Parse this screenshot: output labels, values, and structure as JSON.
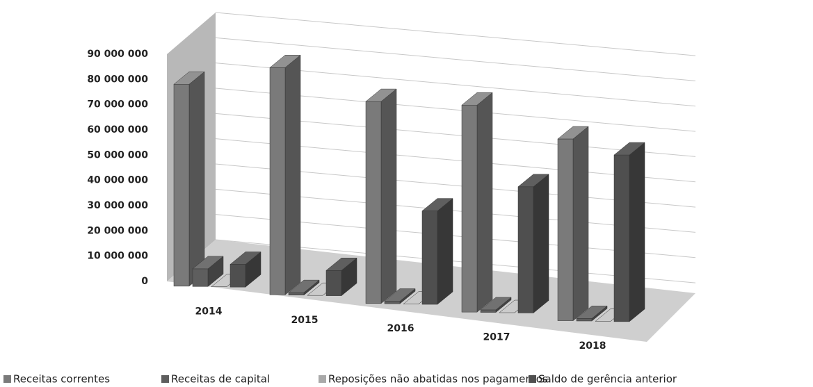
{
  "chart_data": {
    "type": "bar3d",
    "categories": [
      "2014",
      "2015",
      "2016",
      "2017",
      "2018"
    ],
    "series": [
      {
        "name": "Receitas correntes",
        "color": "#7a7a7a",
        "values": [
          80000000,
          90000000,
          80000000,
          82000000,
          72000000
        ]
      },
      {
        "name": "Receitas de capital",
        "color": "#5e5e5e",
        "values": [
          7000000,
          1000000,
          1000000,
          1000000,
          1000000
        ]
      },
      {
        "name": "Reposições não abatidas nos pagamentos",
        "color": "#a9a9a9",
        "values": [
          0,
          0,
          0,
          0,
          0
        ]
      },
      {
        "name": "Saldo de gerência anterior",
        "color": "#4f4f4f",
        "values": [
          9000000,
          10000000,
          37000000,
          50000000,
          66000000
        ]
      }
    ],
    "ylim": [
      0,
      90000000
    ],
    "yticks": [
      0,
      {
        "value": 10000000,
        "label": "10 000 000"
      },
      {
        "value": 20000000,
        "label": "20 000 000"
      },
      {
        "value": 30000000,
        "label": "30 000 000"
      },
      {
        "value": 40000000,
        "label": "40 000 000"
      },
      {
        "value": 50000000,
        "label": "50 000 000"
      },
      {
        "value": 60000000,
        "label": "60 000 000"
      },
      {
        "value": 70000000,
        "label": "70 000 000"
      },
      {
        "value": 80000000,
        "label": "80 000 000"
      },
      {
        "value": 90000000,
        "label": "90 000 000"
      }
    ],
    "grid": true
  }
}
